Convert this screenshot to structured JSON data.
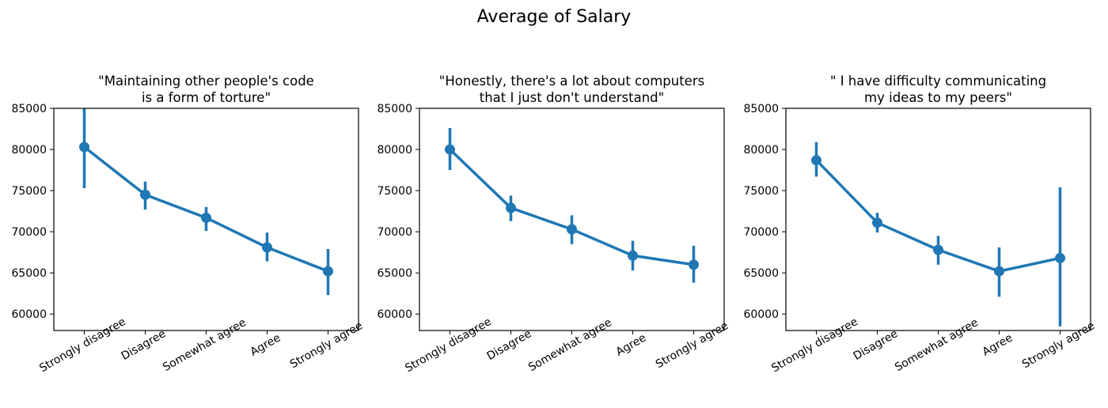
{
  "figure": {
    "title": "Average of Salary"
  },
  "chart_data": [
    {
      "type": "line",
      "title_lines": [
        "\"Maintaining other people's code",
        "is a form of torture\""
      ],
      "categories": [
        "Strongly disagree",
        "Disagree",
        "Somewhat agree",
        "Agree",
        "Strongly agree"
      ],
      "series": [
        {
          "values": [
            80300,
            74500,
            71700,
            68100,
            65200
          ],
          "ci_low": [
            75300,
            72700,
            70100,
            66400,
            62300
          ],
          "ci_high": [
            85000,
            76100,
            73000,
            69900,
            67900
          ]
        }
      ],
      "yticks": [
        60000,
        65000,
        70000,
        75000,
        80000,
        85000
      ],
      "ylim": [
        58000,
        85000
      ],
      "xlabel": "",
      "ylabel": "",
      "color": "#1f77b4",
      "grid": false
    },
    {
      "type": "line",
      "title_lines": [
        "\"Honestly, there's a lot about computers",
        "that I just don't understand\""
      ],
      "categories": [
        "Strongly disagree",
        "Disagree",
        "Somewhat agree",
        "Agree",
        "Strongly agree"
      ],
      "series": [
        {
          "values": [
            80000,
            72900,
            70300,
            67100,
            66000
          ],
          "ci_low": [
            77500,
            71300,
            68500,
            65300,
            63800
          ],
          "ci_high": [
            82600,
            74400,
            72000,
            68900,
            68300
          ]
        }
      ],
      "yticks": [
        60000,
        65000,
        70000,
        75000,
        80000,
        85000
      ],
      "ylim": [
        58000,
        85000
      ],
      "xlabel": "",
      "ylabel": "",
      "color": "#1f77b4",
      "grid": false
    },
    {
      "type": "line",
      "title_lines": [
        "\" I have difficulty communicating",
        "my ideas to my peers\""
      ],
      "categories": [
        "Strongly disagree",
        "Disagree",
        "Somewhat agree",
        "Agree",
        "Strongly agree"
      ],
      "series": [
        {
          "values": [
            78700,
            71100,
            67800,
            65200,
            66800
          ],
          "ci_low": [
            76700,
            69900,
            66000,
            62100,
            58500
          ],
          "ci_high": [
            80900,
            72300,
            69500,
            68100,
            75400
          ]
        }
      ],
      "yticks": [
        60000,
        65000,
        70000,
        75000,
        80000,
        85000
      ],
      "ylim": [
        58000,
        85000
      ],
      "xlabel": "",
      "ylabel": "",
      "color": "#1f77b4",
      "grid": false
    }
  ]
}
